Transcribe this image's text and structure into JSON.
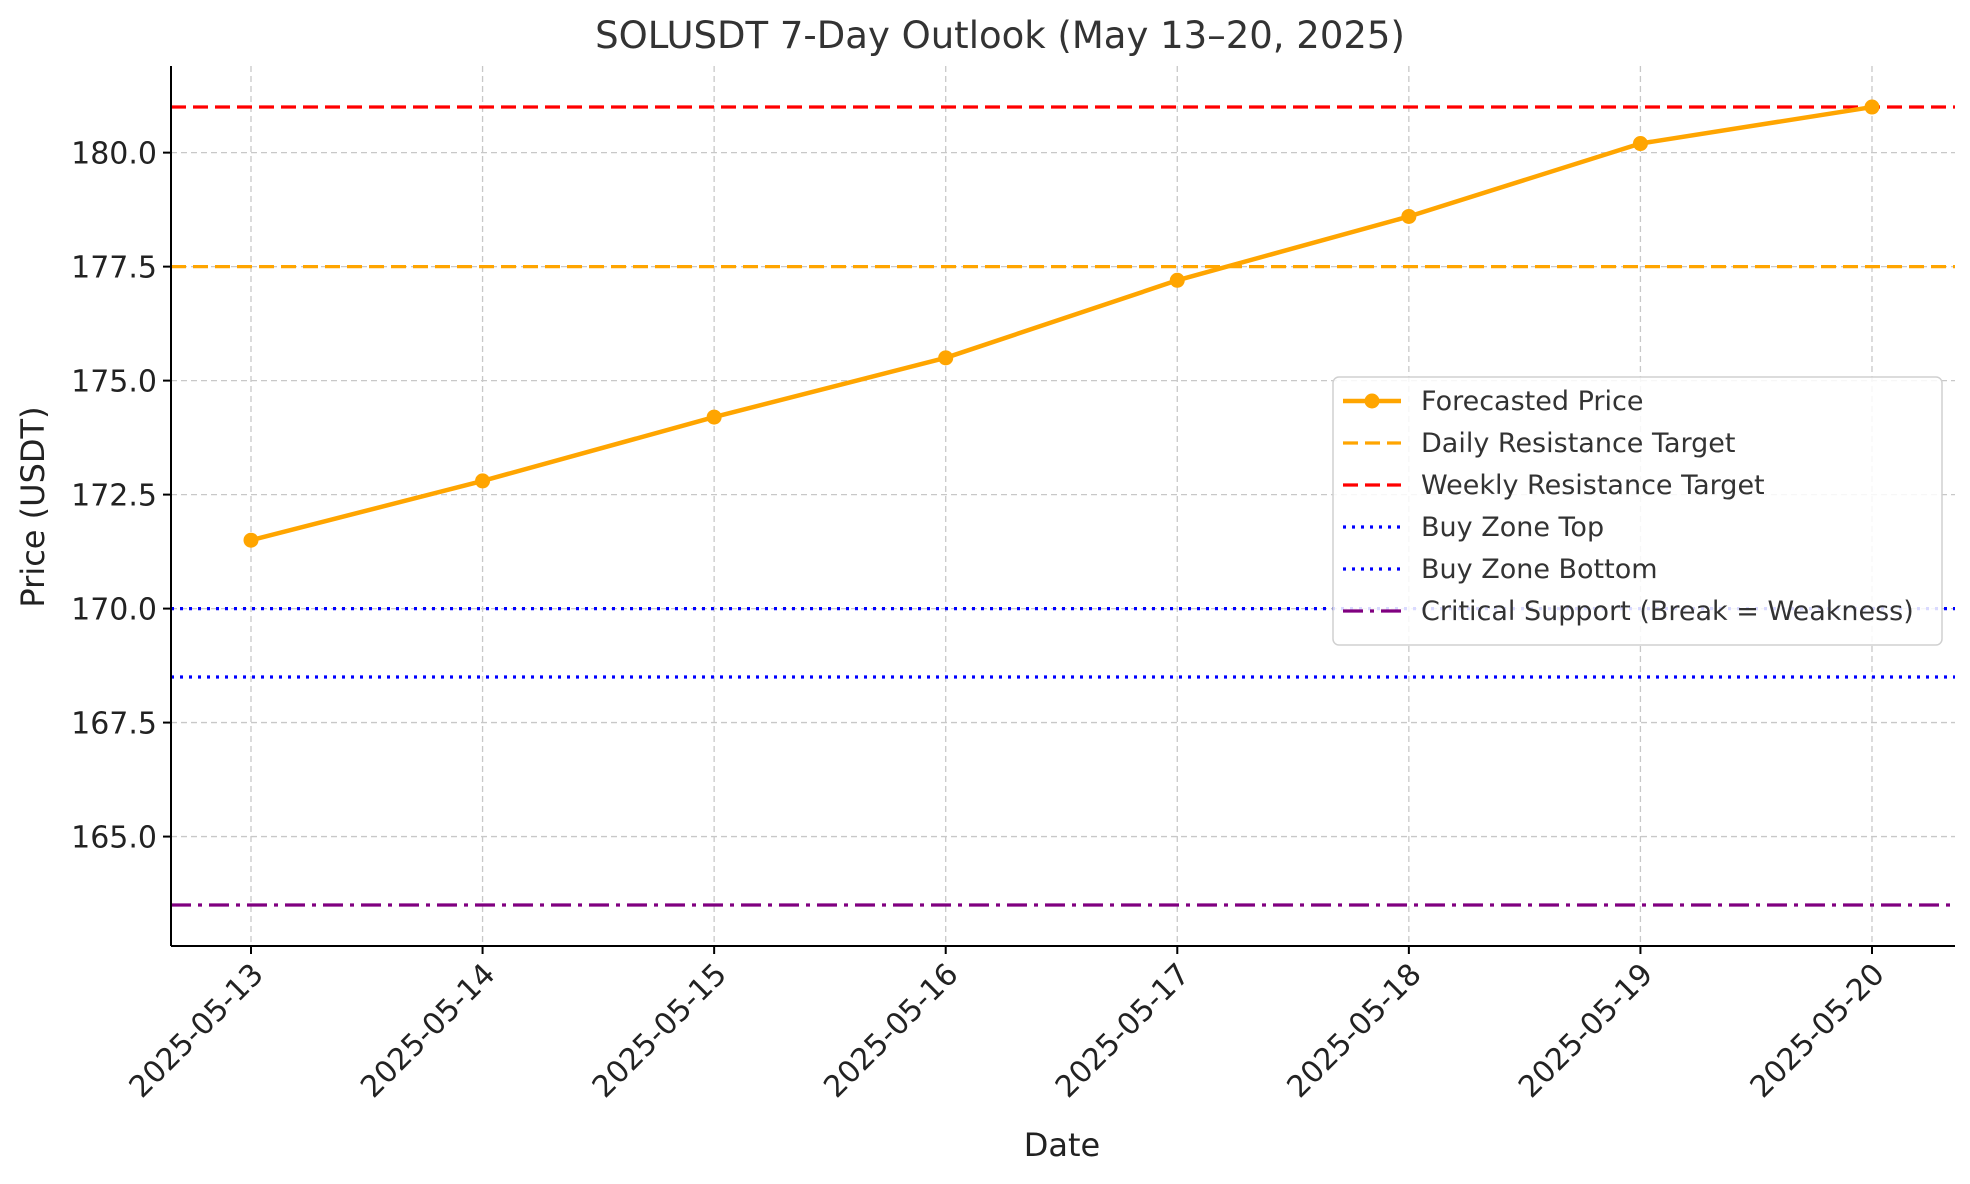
{
  "chart_data": {
    "type": "line",
    "title": "SOLUSDT 7-Day Outlook (May 13–20, 2025)",
    "xlabel": "Date",
    "ylabel": "Price (USDT)",
    "x": [
      "2025-05-13",
      "2025-05-14",
      "2025-05-15",
      "2025-05-16",
      "2025-05-17",
      "2025-05-18",
      "2025-05-19",
      "2025-05-20"
    ],
    "ylim": [
      162.6,
      181.9
    ],
    "yticks": [
      165.0,
      167.5,
      170.0,
      172.5,
      175.0,
      177.5,
      180.0
    ],
    "ytick_labels": [
      "165.0",
      "167.5",
      "170.0",
      "172.5",
      "175.0",
      "177.5",
      "180.0"
    ],
    "grid": true,
    "legend_position": "center-right",
    "series": [
      {
        "name": "Forecasted Price",
        "style": "solid-marker",
        "color": "#FFA500",
        "values": [
          171.5,
          172.8,
          174.2,
          175.5,
          177.2,
          178.6,
          180.2,
          181.0
        ]
      }
    ],
    "reference_lines": [
      {
        "name": "Daily Resistance Target",
        "value": 177.5,
        "color": "#FFA500",
        "style": "dashed"
      },
      {
        "name": "Weekly Resistance Target",
        "value": 181.0,
        "color": "#FF0000",
        "style": "dashed"
      },
      {
        "name": "Buy Zone Top",
        "value": 170.0,
        "color": "#0000FF",
        "style": "dotted"
      },
      {
        "name": "Buy Zone Bottom",
        "value": 168.5,
        "color": "#0000FF",
        "style": "dotted"
      },
      {
        "name": "Critical Support (Break = Weakness)",
        "value": 163.5,
        "color": "#800080",
        "style": "dashdot"
      }
    ]
  }
}
